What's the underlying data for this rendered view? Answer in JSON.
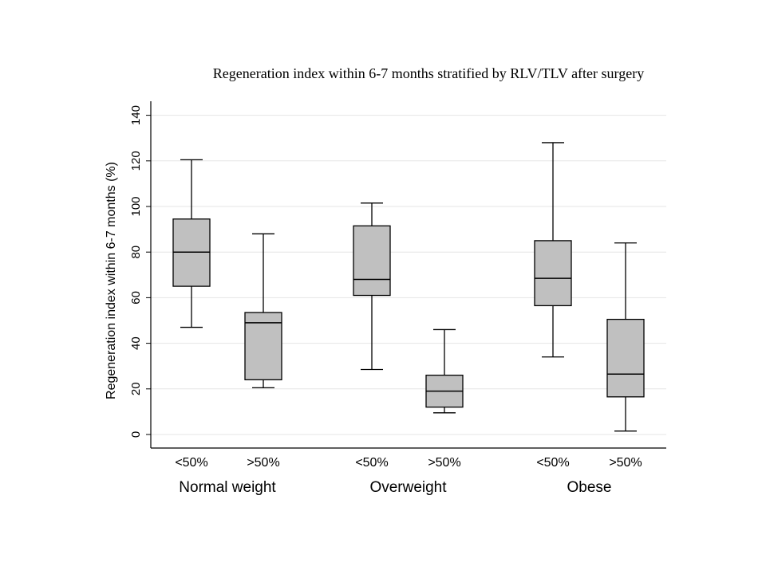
{
  "chart_data": {
    "type": "box",
    "title": "Regeneration index within 6-7 months stratified by RLV/TLV after surgery",
    "ylabel": "Regeneration index within 6-7 months (%)",
    "ylim": [
      -6,
      147
    ],
    "yticks": [
      0,
      20,
      40,
      60,
      80,
      100,
      120,
      140
    ],
    "grid": true,
    "groups": [
      {
        "label": "Normal weight",
        "boxes": [
          {
            "label": "<50%",
            "min": 47,
            "q1": 65,
            "median": 80,
            "q3": 94.5,
            "max": 120.5
          },
          {
            "label": ">50%",
            "min": 20.5,
            "q1": 24,
            "median": 49,
            "q3": 53.5,
            "max": 88
          }
        ]
      },
      {
        "label": "Overweight",
        "boxes": [
          {
            "label": "<50%",
            "min": 28.5,
            "q1": 61,
            "median": 68,
            "q3": 91.5,
            "max": 101.5
          },
          {
            "label": ">50%",
            "min": 9.5,
            "q1": 12,
            "median": 19,
            "q3": 26,
            "max": 46
          }
        ]
      },
      {
        "label": "Obese",
        "boxes": [
          {
            "label": "<50%",
            "min": 34,
            "q1": 56.5,
            "median": 68.5,
            "q3": 85,
            "max": 128
          },
          {
            "label": ">50%",
            "min": 1.5,
            "q1": 16.5,
            "median": 26.5,
            "q3": 50.5,
            "max": 84
          }
        ]
      }
    ],
    "colors": {
      "box_fill": "#c0c0c0",
      "line": "#000000",
      "grid": "#e6e6e6"
    }
  }
}
